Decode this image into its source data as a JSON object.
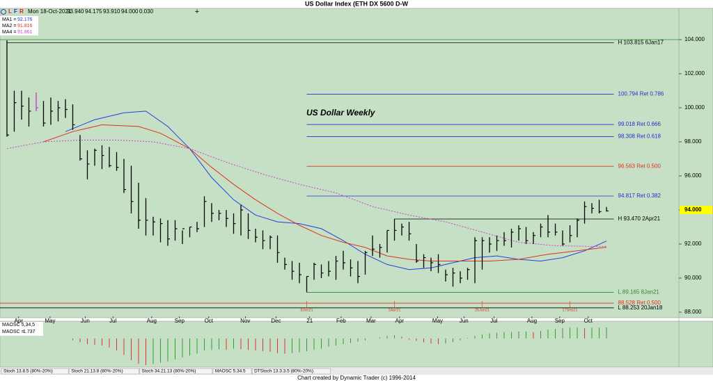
{
  "header": {
    "icons": [
      "L",
      "F",
      "R"
    ],
    "quote": [
      "Mon 18-Oct-2021",
      "93.940",
      "94.175",
      "93.910",
      "94.000",
      "0.030"
    ],
    "title": "US Dollar Index (ETH DX 5600 D-W",
    "plus": "+"
  },
  "chart_data": [
    {
      "type": "ohlc",
      "annotation": "US Dollar Weekly",
      "color": "#000000",
      "highlight": {
        "index": 4,
        "color": "#cc33cc"
      },
      "high": [
        103.96,
        101.0,
        101.0,
        100.6,
        100.9,
        100.4,
        100.6,
        100.4,
        100.5,
        100.2,
        98.4,
        97.5,
        97.6,
        97.8,
        97.7,
        97.4,
        97.0,
        96.6,
        95.6,
        94.7,
        93.6,
        93.5,
        93.4,
        93.4,
        92.8,
        93.0,
        93.3,
        94.8,
        94.4,
        94.0,
        94.0,
        93.8,
        94.3,
        93.8,
        92.9,
        92.8,
        92.5,
        92.5,
        91.2,
        91.0,
        90.9,
        90.1,
        90.9,
        90.8,
        91.0,
        91.3,
        91.6,
        91.1,
        91.0,
        91.6,
        92.5,
        92.0,
        92.8,
        93.47,
        93.2,
        93.3,
        92.0,
        91.4,
        91.2,
        91.4,
        90.5,
        90.6,
        90.4,
        90.6,
        92.4,
        92.4,
        92.4,
        92.5,
        92.7,
        92.9,
        93.1,
        93.0,
        92.7,
        93.2,
        93.7,
        93.2,
        92.8,
        93.1,
        93.5,
        94.5,
        94.4,
        94.6,
        94.175
      ],
      "low": [
        98.3,
        98.6,
        99.3,
        98.9,
        99.8,
        98.9,
        99.0,
        99.2,
        99.4,
        98.7,
        96.9,
        95.8,
        96.6,
        96.4,
        96.5,
        96.3,
        95.0,
        93.8,
        92.9,
        92.5,
        92.5,
        92.1,
        91.9,
        92.2,
        92.0,
        92.4,
        92.7,
        93.0,
        93.3,
        93.4,
        93.0,
        92.6,
        92.5,
        92.3,
        92.1,
        91.7,
        91.7,
        90.9,
        90.5,
        89.9,
        89.7,
        89.165,
        89.9,
        90.0,
        90.1,
        89.9,
        90.5,
        90.1,
        89.7,
        90.2,
        91.3,
        91.2,
        91.5,
        92.2,
        92.5,
        92.2,
        90.9,
        90.6,
        90.4,
        90.3,
        89.8,
        89.5,
        89.7,
        89.9,
        89.7,
        90.5,
        91.5,
        91.6,
        91.9,
        91.8,
        92.2,
        92.0,
        92.0,
        92.4,
        92.4,
        92.5,
        91.9,
        92.1,
        92.4,
        93.2,
        93.8,
        93.8,
        93.91
      ],
      "close": [
        98.4,
        100.3,
        100.1,
        99.8,
        100.0,
        99.1,
        99.8,
        100.0,
        99.9,
        99.0,
        97.0,
        96.7,
        97.5,
        97.2,
        96.6,
        96.5,
        95.2,
        94.5,
        93.4,
        93.4,
        93.3,
        93.2,
        92.3,
        92.9,
        92.9,
        93.0,
        92.9,
        94.5,
        93.8,
        93.8,
        93.5,
        93.2,
        94.0,
        92.8,
        92.4,
        92.2,
        92.4,
        91.5,
        90.8,
        90.4,
        90.2,
        90.1,
        90.8,
        90.3,
        90.4,
        91.0,
        90.9,
        90.6,
        90.1,
        91.5,
        91.7,
        91.8,
        92.8,
        92.8,
        93.0,
        92.6,
        91.0,
        91.2,
        90.9,
        90.8,
        90.2,
        90.3,
        90.0,
        90.5,
        92.2,
        92.2,
        92.0,
        92.2,
        92.2,
        92.7,
        92.9,
        92.2,
        92.5,
        93.0,
        92.7,
        92.7,
        92.0,
        92.5,
        93.4,
        94.2,
        94.1,
        93.9,
        93.94
      ],
      "xlim": [
        -0.95,
        91.9
      ],
      "ylim": [
        87.755,
        105.755
      ],
      "yticks": [
        {
          "value": 88,
          "label": "88.000"
        },
        {
          "value": 90,
          "label": "90.000"
        },
        {
          "value": 92,
          "label": "92.000"
        },
        {
          "value": 94,
          "label": "94.000"
        },
        {
          "value": 96,
          "label": "96.000"
        },
        {
          "value": 98,
          "label": "98.000"
        },
        {
          "value": 100,
          "label": "100.000"
        },
        {
          "value": 102,
          "label": "102.000"
        },
        {
          "value": 104,
          "label": "104.000"
        }
      ],
      "xticks": [
        {
          "value": 1.6,
          "label": "Apr"
        },
        {
          "value": 5.9,
          "label": "May"
        },
        {
          "value": 10.7,
          "label": "Jun"
        },
        {
          "value": 14.5,
          "label": "Jul"
        },
        {
          "value": 19.8,
          "label": "Aug"
        },
        {
          "value": 23.6,
          "label": "Sep"
        },
        {
          "value": 27.6,
          "label": "Oct"
        },
        {
          "value": 32.6,
          "label": "Nov"
        },
        {
          "value": 36.8,
          "label": "Dec"
        },
        {
          "value": 41.4,
          "label": "21"
        },
        {
          "value": 45.7,
          "label": "Feb"
        },
        {
          "value": 49.8,
          "label": "Mar"
        },
        {
          "value": 53.7,
          "label": "Apr"
        },
        {
          "value": 58.9,
          "label": "May"
        },
        {
          "value": 62.5,
          "label": "Jun"
        },
        {
          "value": 66.6,
          "label": "Jul"
        },
        {
          "value": 71.8,
          "label": "Aug"
        },
        {
          "value": 75.6,
          "label": "Sep"
        },
        {
          "value": 79.5,
          "label": "Oct"
        }
      ],
      "moving_averages": [
        {
          "name": "MA1 =",
          "last": 92.176,
          "color": "#2040e0",
          "dashed": false,
          "x": [
            8,
            12,
            16,
            19,
            22,
            25,
            28,
            31,
            34,
            37,
            40,
            43,
            46,
            49,
            52,
            55,
            58,
            61,
            64,
            67,
            70,
            73,
            76,
            79,
            82
          ],
          "values": [
            98.6,
            99.3,
            99.7,
            99.8,
            98.9,
            97.6,
            95.9,
            94.6,
            93.7,
            93.3,
            93.2,
            92.9,
            92.2,
            91.4,
            90.8,
            90.5,
            90.6,
            90.9,
            91.2,
            91.3,
            91.1,
            91.0,
            91.2,
            91.6,
            92.176
          ]
        },
        {
          "name": "MA2 =",
          "last": 91.816,
          "color": "#e03020",
          "dashed": false,
          "x": [
            5,
            9,
            13,
            18,
            21,
            25,
            28,
            31,
            34,
            37,
            40,
            43,
            46,
            49,
            52,
            55,
            58,
            62,
            66,
            70,
            74,
            78,
            82
          ],
          "values": [
            98.0,
            98.6,
            99.0,
            98.9,
            98.5,
            97.6,
            96.5,
            95.5,
            94.6,
            93.8,
            93.1,
            92.5,
            92.1,
            91.8,
            91.3,
            91.1,
            91.0,
            91.0,
            91.0,
            91.1,
            91.4,
            91.6,
            91.816
          ]
        },
        {
          "name": "MA4 =",
          "last": 91.861,
          "color": "#d040d0",
          "dashed": true,
          "x": [
            0,
            5,
            10,
            15,
            20,
            25,
            30,
            35,
            40,
            45,
            50,
            55,
            60,
            65,
            70,
            75,
            80,
            82
          ],
          "values": [
            97.6,
            98.0,
            98.1,
            98.1,
            98.0,
            97.6,
            96.8,
            96.1,
            95.5,
            95.0,
            94.2,
            93.7,
            93.3,
            92.7,
            92.1,
            91.9,
            91.86,
            91.861
          ]
        }
      ],
      "levels": [
        {
          "value": 104.0,
          "color": "#2e8b2e"
        },
        {
          "value": 103.815,
          "label": "H 103.815 6Jan17",
          "color": "#000000",
          "start": 0
        },
        {
          "value": 100.794,
          "label": "100.794 Ret 0.786",
          "color": "#2030d0",
          "start": 41
        },
        {
          "value": 99.018,
          "label": "99.018 Ret 0.666",
          "color": "#2030d0",
          "start": 41
        },
        {
          "value": 98.308,
          "label": "98.308 Ret 0.618",
          "color": "#2030d0",
          "start": 41
        },
        {
          "value": 96.563,
          "label": "96.563 Ret 0.500",
          "color": "#e03020",
          "start": 41
        },
        {
          "value": 94.817,
          "label": "94.817 Ret 0.382",
          "color": "#2030d0",
          "start": 41
        },
        {
          "value": 93.47,
          "label": "H 93.470 2Apr21",
          "color": "#000000",
          "start": 53
        },
        {
          "value": 89.165,
          "label": "L 89.165 8Jan21",
          "color": "#2e8b2e",
          "start": 41
        },
        {
          "value": 88.528,
          "label": "88.528 Ret 0.500",
          "color": "#e03020"
        },
        {
          "value": 88.253,
          "label": "L 88.253 20Jan18",
          "color": "#000000"
        }
      ],
      "date_markers": [
        {
          "x": 41,
          "label": "8Jan21"
        },
        {
          "x": 53,
          "label": "2Apr21"
        },
        {
          "x": 65,
          "label": "25Jun21"
        },
        {
          "x": 77,
          "label": "17Sep21"
        }
      ],
      "marker_color": "#e03020",
      "price_tag": {
        "value": 94,
        "label": "94.000",
        "color": "#ffff00"
      }
    },
    {
      "type": "bar",
      "title": "MAOSC 5,34,5",
      "readout_label": "MAOSC =",
      "readout": 1.737,
      "up_color": "#2e9e2e",
      "down_color": "#e03030",
      "xlim": [
        -0.95,
        91.9
      ],
      "ylim": [
        -4.4,
        2.06
      ],
      "values": [
        null,
        null,
        null,
        null,
        null,
        null,
        null,
        null,
        null,
        -0.3,
        -0.6,
        -0.9,
        -1.0,
        -1.1,
        -1.4,
        -1.9,
        -2.6,
        -3.4,
        -4.0,
        -4.2,
        -4.0,
        -3.8,
        -3.6,
        -3.3,
        -3.0,
        -2.7,
        -2.4,
        -1.9,
        -1.8,
        -1.7,
        -1.8,
        -1.6,
        -1.7,
        -1.8,
        -1.9,
        -2.0,
        -2.1,
        -2.3,
        -2.4,
        -2.3,
        -2.2,
        -2.0,
        -1.8,
        -1.6,
        -1.3,
        -1.1,
        -0.9,
        -0.7,
        -0.5,
        -0.3,
        0.0,
        0.2,
        0.4,
        0.5,
        0.3,
        -0.2,
        -0.4,
        -0.6,
        -0.8,
        -0.9,
        -0.8,
        -0.6,
        -0.3,
        0.1,
        0.4,
        0.6,
        0.8,
        0.9,
        1.0,
        1.0,
        1.1,
        1.1,
        1.0,
        1.2,
        1.4,
        1.5,
        1.6,
        1.7,
        1.7,
        1.6,
        1.7,
        1.7,
        1.737
      ]
    }
  ],
  "tabs": [
    "Stoch 13.8.5 (80%-20%)",
    "Stoch 21.13.8 (80%-20%)",
    "Stoch 34.21.13 (80%-20%)",
    "MAOSC 5.34.5",
    "DTStoch 13.3.3.5 (80%-20%)"
  ],
  "footer": "Chart created by Dynamic Trader  (c)  1996-2014"
}
